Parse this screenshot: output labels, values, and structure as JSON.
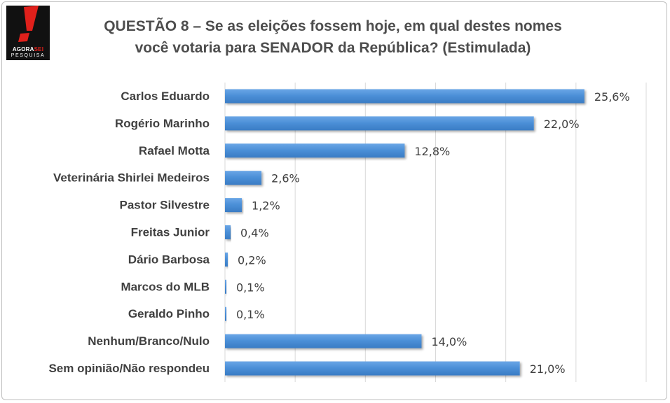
{
  "logo": {
    "line1_part1": "AGORA",
    "line1_part2": "SEI",
    "line2": "PESQUISA",
    "icon": "exclamation-mark-icon",
    "colors": {
      "background": "#111111",
      "mark": "#e0201b"
    }
  },
  "title_line1": "QUESTÃO 8 – Se as eleições fossem hoje, em qual destes nomes",
  "title_line2": "você votaria para SENADOR da República? (Estimulada)",
  "chart_data": {
    "type": "bar",
    "orientation": "horizontal",
    "title": "QUESTÃO 8 – Se as eleições fossem hoje, em qual destes nomes você votaria para SENADOR da República? (Estimulada)",
    "categories": [
      "Carlos Eduardo",
      "Rogério Marinho",
      "Rafael Motta",
      "Veterinária Shirlei Medeiros",
      "Pastor Silvestre",
      "Freitas Junior",
      "Dário Barbosa",
      "Marcos do MLB",
      "Geraldo Pinho",
      "Nenhum/Branco/Nulo",
      "Sem opinião/Não respondeu"
    ],
    "values": [
      25.6,
      22.0,
      12.8,
      2.6,
      1.2,
      0.4,
      0.2,
      0.1,
      0.1,
      14.0,
      21.0
    ],
    "value_labels": [
      "25,6%",
      "22,0%",
      "12,8%",
      "2,6%",
      "1,2%",
      "0,4%",
      "0,2%",
      "0,1%",
      "0,1%",
      "14,0%",
      "21,0%"
    ],
    "xlim": [
      0,
      30
    ],
    "grid": "vertical",
    "legend": "none",
    "colors": {
      "bar": "#4a8ed6",
      "grid": "#d9d9d9",
      "text": "#404040"
    }
  }
}
